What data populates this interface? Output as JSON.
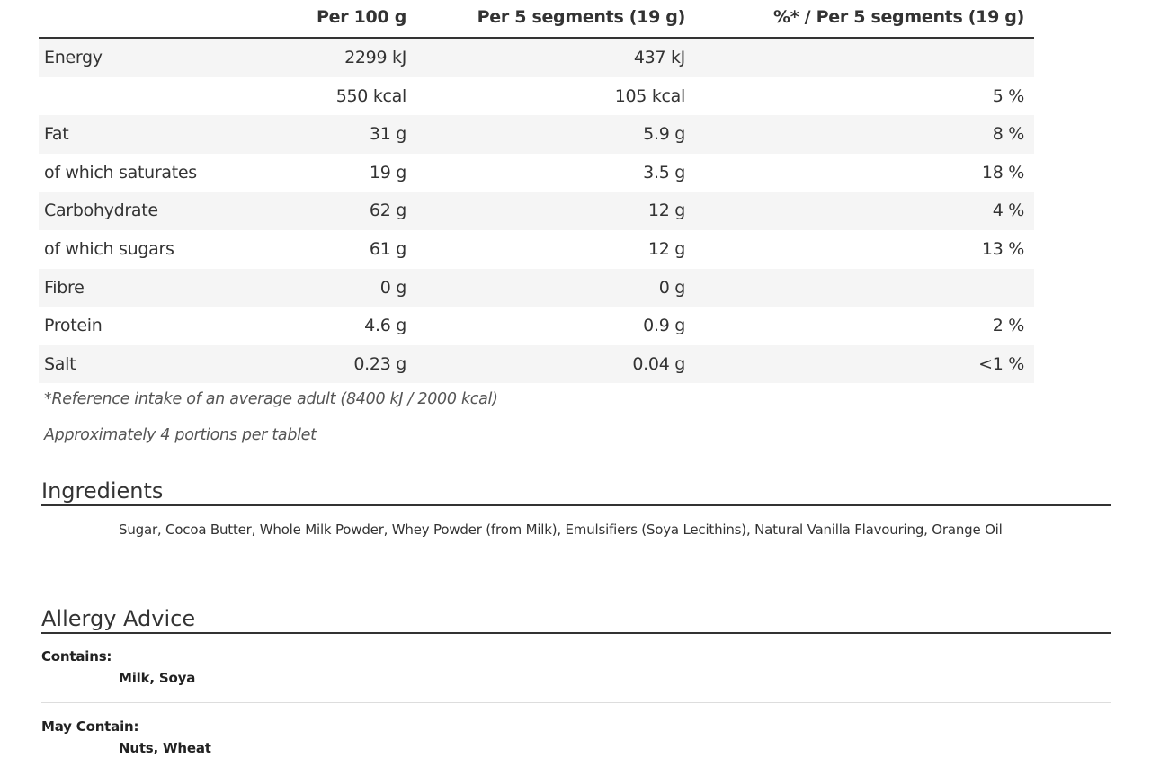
{
  "nutrition": {
    "headers": [
      "Per 100 g",
      "Per 5 segments (19 g)",
      "%* / Per 5 segments (19 g)"
    ],
    "rows": [
      {
        "name": "Energy",
        "per100": "2299 kJ",
        "perPortion": "437 kJ",
        "ri": ""
      },
      {
        "name": "",
        "per100": "550 kcal",
        "perPortion": "105 kcal",
        "ri": "5 %"
      },
      {
        "name": "Fat",
        "per100": "31 g",
        "perPortion": "5.9 g",
        "ri": "8 %"
      },
      {
        "name": "of which saturates",
        "per100": "19 g",
        "perPortion": "3.5 g",
        "ri": "18 %"
      },
      {
        "name": "Carbohydrate",
        "per100": "62 g",
        "perPortion": "12 g",
        "ri": "4 %"
      },
      {
        "name": "of which sugars",
        "per100": "61 g",
        "perPortion": "12 g",
        "ri": "13 %"
      },
      {
        "name": "Fibre",
        "per100": "0 g",
        "perPortion": "0 g",
        "ri": ""
      },
      {
        "name": "Protein",
        "per100": "4.6 g",
        "perPortion": "0.9 g",
        "ri": "2 %"
      },
      {
        "name": "Salt",
        "per100": "0.23 g",
        "perPortion": "0.04 g",
        "ri": "<1 %"
      }
    ],
    "reference_note": "*Reference intake of an average adult (8400 kJ / 2000 kcal)",
    "portion_note": "Approximately 4 portions per tablet"
  },
  "ingredients": {
    "title": "Ingredients",
    "text": "Sugar, Cocoa Butter, Whole Milk Powder, Whey Powder (from Milk), Emulsifiers (Soya Lecithins), Natural Vanilla Flavouring, Orange Oil"
  },
  "allergy": {
    "title": "Allergy Advice",
    "contains_label": "Contains:",
    "contains_value": "Milk, Soya",
    "may_contain_label": "May Contain:",
    "may_contain_value": "Nuts, Wheat"
  }
}
